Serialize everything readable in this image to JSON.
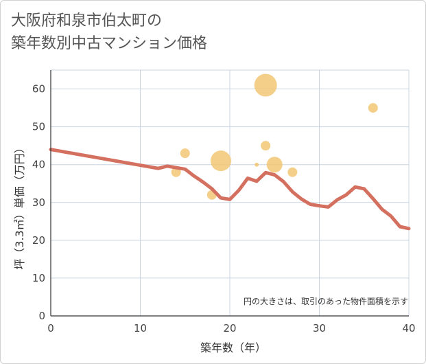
{
  "title_line1": "大阪府和泉市伯太町の",
  "title_line2": "築年数別中古マンション価格",
  "chart_data": {
    "type": "scatter+line",
    "title": "大阪府和泉市伯太町の築年数別中古マンション価格",
    "xlabel": "築年数（年）",
    "ylabel": "坪（3.3㎡）単価（万円）",
    "xlim": [
      0,
      40
    ],
    "ylim": [
      0,
      65
    ],
    "xticks": [
      0,
      10,
      20,
      30,
      40
    ],
    "yticks": [
      0,
      10,
      20,
      30,
      40,
      50,
      60
    ],
    "grid": true,
    "note": "円の大きさは、取引のあった物件面積を示す",
    "colors": {
      "line": "#d4705f",
      "bubble": "#f2c46f",
      "grid": "#c8d4e0"
    },
    "trend_line": {
      "x": [
        0,
        12,
        13,
        15,
        16,
        17,
        18,
        19,
        20,
        21,
        22,
        23,
        24,
        25,
        26,
        27,
        28,
        29,
        30,
        31,
        32,
        33,
        34,
        35,
        36,
        37,
        38,
        39,
        40
      ],
      "y": [
        44,
        39,
        39.6,
        38.8,
        37,
        35.4,
        33.6,
        31.2,
        30.8,
        33.2,
        36.4,
        35.6,
        37.9,
        37.3,
        35.5,
        32.8,
        30.9,
        29.5,
        29.1,
        28.8,
        30.7,
        32,
        34.1,
        33.6,
        31,
        28.2,
        26.4,
        23.6,
        23.1
      ]
    },
    "bubbles": [
      {
        "x": 24,
        "y": 61,
        "size": 3.3
      },
      {
        "x": 36,
        "y": 55,
        "size": 1.4
      },
      {
        "x": 24,
        "y": 45,
        "size": 1.4
      },
      {
        "x": 15,
        "y": 43,
        "size": 1.4
      },
      {
        "x": 19,
        "y": 41,
        "size": 3.0
      },
      {
        "x": 23,
        "y": 40,
        "size": 0.6
      },
      {
        "x": 25,
        "y": 40,
        "size": 2.3
      },
      {
        "x": 14,
        "y": 38,
        "size": 1.4
      },
      {
        "x": 27,
        "y": 38,
        "size": 1.4
      },
      {
        "x": 18,
        "y": 32,
        "size": 1.4
      }
    ]
  }
}
